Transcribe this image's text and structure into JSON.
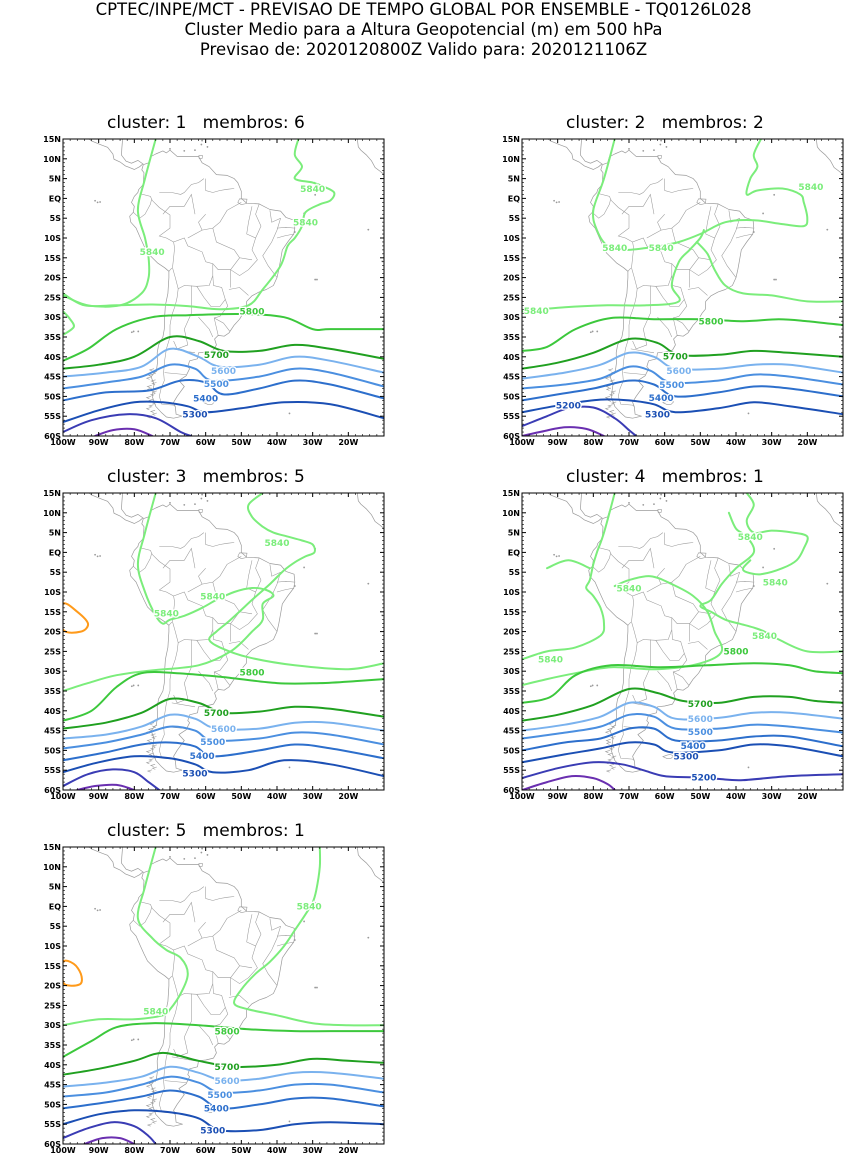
{
  "header": {
    "line1": "CPTEC/INPE/MCT - PREVISAO DE TEMPO GLOBAL POR ENSEMBLE - TQ0126L028",
    "line2": "Cluster Medio para a Altura Geopotencial (m) em 500 hPa",
    "line3": "Previsao de: 2020120800Z   Valido para: 2020121106Z"
  },
  "axes": {
    "lat_labels": [
      "15N",
      "10N",
      "5N",
      "EQ",
      "5S",
      "10S",
      "15S",
      "20S",
      "25S",
      "30S",
      "35S",
      "40S",
      "45S",
      "50S",
      "55S",
      "60S"
    ],
    "lon_labels": [
      "100W",
      "90W",
      "80W",
      "70W",
      "60W",
      "50W",
      "40W",
      "30W",
      "20W"
    ]
  },
  "colors": {
    "c5840": "#7bed7b",
    "c5800": "#3cc83c",
    "c5700": "#20a020",
    "c5600": "#7ab2ee",
    "c5500": "#4b8fe0",
    "c5400": "#2d6fcc",
    "c5300": "#1b4fb4",
    "c5200": "#3a3cb4",
    "c5100": "#6a2fb0",
    "c5880": "#ff9a1a",
    "land": "#9a9a9a"
  },
  "panels": [
    {
      "title": "cluster: 1   membros: 6",
      "labels": [
        {
          "text": "5840",
          "lon": -30,
          "lat": 2.5,
          "color": "c5840"
        },
        {
          "text": "5840",
          "lon": -32,
          "lat": -6,
          "color": "c5840"
        },
        {
          "text": "5840",
          "lon": -75,
          "lat": -13.5,
          "color": "c5840"
        },
        {
          "text": "5800",
          "lon": -47,
          "lat": -28.5,
          "color": "c5800"
        },
        {
          "text": "5700",
          "lon": -57,
          "lat": -39.5,
          "color": "c5700"
        },
        {
          "text": "5600",
          "lon": -55,
          "lat": -43.5,
          "color": "c5600"
        },
        {
          "text": "5500",
          "lon": -57,
          "lat": -46.8,
          "color": "c5500"
        },
        {
          "text": "5400",
          "lon": -60,
          "lat": -50.4,
          "color": "c5400"
        },
        {
          "text": "5300",
          "lon": -63,
          "lat": -54.5,
          "color": "c5300"
        }
      ]
    },
    {
      "title": "cluster: 2   membros: 2",
      "labels": [
        {
          "text": "5840",
          "lon": -19,
          "lat": 3,
          "color": "c5840"
        },
        {
          "text": "5840",
          "lon": -74,
          "lat": -12.5,
          "color": "c5840"
        },
        {
          "text": "5840",
          "lon": -61,
          "lat": -12.5,
          "color": "c5840"
        },
        {
          "text": "5840",
          "lon": -96,
          "lat": -28.3,
          "color": "c5840"
        },
        {
          "text": "5800",
          "lon": -47,
          "lat": -31,
          "color": "c5800"
        },
        {
          "text": "5700",
          "lon": -57,
          "lat": -39.8,
          "color": "c5700"
        },
        {
          "text": "5600",
          "lon": -56,
          "lat": -43.5,
          "color": "c5600"
        },
        {
          "text": "5500",
          "lon": -58,
          "lat": -47,
          "color": "c5500"
        },
        {
          "text": "5400",
          "lon": -61,
          "lat": -50.3,
          "color": "c5400"
        },
        {
          "text": "5300",
          "lon": -62,
          "lat": -54.5,
          "color": "c5300"
        },
        {
          "text": "5200",
          "lon": -87,
          "lat": -52.2,
          "color": "c5300"
        }
      ]
    },
    {
      "title": "cluster: 3   membros: 5",
      "labels": [
        {
          "text": "5840",
          "lon": -40,
          "lat": 2.5,
          "color": "c5840"
        },
        {
          "text": "5840",
          "lon": -58,
          "lat": -11,
          "color": "c5840"
        },
        {
          "text": "5840",
          "lon": -71,
          "lat": -15.4,
          "color": "c5840"
        },
        {
          "text": "5800",
          "lon": -47,
          "lat": -30.2,
          "color": "c5800"
        },
        {
          "text": "5700",
          "lon": -57,
          "lat": -40.5,
          "color": "c5700"
        },
        {
          "text": "5600",
          "lon": -55,
          "lat": -44.5,
          "color": "c5600"
        },
        {
          "text": "5500",
          "lon": -58,
          "lat": -47.8,
          "color": "c5500"
        },
        {
          "text": "5400",
          "lon": -61,
          "lat": -51.3,
          "color": "c5400"
        },
        {
          "text": "5300",
          "lon": -63,
          "lat": -55.8,
          "color": "c5300"
        }
      ]
    },
    {
      "title": "cluster: 4   membros: 1",
      "labels": [
        {
          "text": "5840",
          "lon": -36,
          "lat": 4,
          "color": "c5840"
        },
        {
          "text": "5840",
          "lon": -29,
          "lat": -7.5,
          "color": "c5840"
        },
        {
          "text": "5840",
          "lon": -70,
          "lat": -9,
          "color": "c5840"
        },
        {
          "text": "5840",
          "lon": -32,
          "lat": -21,
          "color": "c5840"
        },
        {
          "text": "5840",
          "lon": -92,
          "lat": -27,
          "color": "c5840"
        },
        {
          "text": "5800",
          "lon": -40,
          "lat": -25,
          "color": "c5800"
        },
        {
          "text": "5700",
          "lon": -50,
          "lat": -38.2,
          "color": "c5700"
        },
        {
          "text": "5600",
          "lon": -50,
          "lat": -42,
          "color": "c5600"
        },
        {
          "text": "5500",
          "lon": -50,
          "lat": -45.3,
          "color": "c5500"
        },
        {
          "text": "5400",
          "lon": -52,
          "lat": -48.8,
          "color": "c5400"
        },
        {
          "text": "5300",
          "lon": -54,
          "lat": -51.5,
          "color": "c5300"
        },
        {
          "text": "5200",
          "lon": -49,
          "lat": -56.8,
          "color": "c5300"
        }
      ]
    },
    {
      "title": "cluster: 5   membros: 1",
      "labels": [
        {
          "text": "5840",
          "lon": -31,
          "lat": 0,
          "color": "c5840"
        },
        {
          "text": "5840",
          "lon": -74,
          "lat": -26.5,
          "color": "c5840"
        },
        {
          "text": "5800",
          "lon": -54,
          "lat": -31.5,
          "color": "c5800"
        },
        {
          "text": "5700",
          "lon": -54,
          "lat": -40.5,
          "color": "c5700"
        },
        {
          "text": "5600",
          "lon": -54,
          "lat": -44,
          "color": "c5600"
        },
        {
          "text": "5500",
          "lon": -56,
          "lat": -47.5,
          "color": "c5500"
        },
        {
          "text": "5400",
          "lon": -57,
          "lat": -51,
          "color": "c5400"
        },
        {
          "text": "5300",
          "lon": -58,
          "lat": -56.5,
          "color": "c5300"
        }
      ]
    }
  ]
}
